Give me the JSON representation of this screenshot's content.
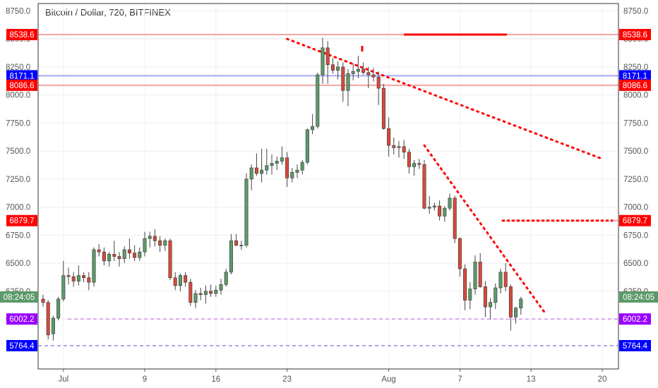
{
  "header": {
    "title": "Bitcoin / Dollar, 720, BITFINEX"
  },
  "colors": {
    "up": "#5b9a68",
    "down": "#d64a3b",
    "red_tag": "#ff0000",
    "blue_tag": "#0000ff",
    "purple_tag": "#9900ff",
    "green_tag": "#5b9a68"
  },
  "chart_data": {
    "type": "candlestick",
    "ylim": [
      5640,
      8830
    ],
    "y_ticks": [
      {
        "value": 6000,
        "label": "6000.0"
      },
      {
        "value": 6250,
        "label": "6250.0"
      },
      {
        "value": 6500,
        "label": "6500.0"
      },
      {
        "value": 6750,
        "label": "6750.0"
      },
      {
        "value": 7000,
        "label": "7000.0"
      },
      {
        "value": 7250,
        "label": "7250.0"
      },
      {
        "value": 7500,
        "label": "7500.0"
      },
      {
        "value": 7750,
        "label": "7750.0"
      },
      {
        "value": 8000,
        "label": "8000.0"
      },
      {
        "value": 8250,
        "label": "8250.0"
      },
      {
        "value": 8500,
        "label": "8500.0"
      },
      {
        "value": 8750,
        "label": "8750.0"
      }
    ],
    "x_ticks": [
      {
        "index": 4,
        "label": "Jul"
      },
      {
        "index": 20,
        "label": "9"
      },
      {
        "index": 34,
        "label": "16"
      },
      {
        "index": 48,
        "label": "23"
      },
      {
        "index": 68,
        "label": "Aug"
      },
      {
        "index": 82,
        "label": "7"
      },
      {
        "index": 96,
        "label": "13"
      },
      {
        "index": 110,
        "label": "20"
      }
    ],
    "candles": [
      [
        6180,
        6220,
        6110,
        6150
      ],
      [
        6150,
        6170,
        5820,
        5860
      ],
      [
        5870,
        6030,
        5810,
        6010
      ],
      [
        6010,
        6200,
        5990,
        6180
      ],
      [
        6180,
        6520,
        6160,
        6390
      ],
      [
        6390,
        6460,
        6310,
        6380
      ],
      [
        6380,
        6420,
        6290,
        6340
      ],
      [
        6340,
        6480,
        6300,
        6390
      ],
      [
        6390,
        6420,
        6330,
        6370
      ],
      [
        6370,
        6420,
        6260,
        6330
      ],
      [
        6330,
        6640,
        6290,
        6620
      ],
      [
        6620,
        6670,
        6560,
        6600
      ],
      [
        6600,
        6640,
        6480,
        6520
      ],
      [
        6520,
        6600,
        6470,
        6580
      ],
      [
        6580,
        6700,
        6520,
        6560
      ],
      [
        6560,
        6600,
        6470,
        6540
      ],
      [
        6540,
        6650,
        6500,
        6620
      ],
      [
        6620,
        6720,
        6540,
        6590
      ],
      [
        6590,
        6660,
        6520,
        6550
      ],
      [
        6550,
        6640,
        6520,
        6600
      ],
      [
        6600,
        6780,
        6560,
        6720
      ],
      [
        6720,
        6780,
        6640,
        6740
      ],
      [
        6740,
        6800,
        6650,
        6700
      ],
      [
        6700,
        6740,
        6600,
        6660
      ],
      [
        6660,
        6720,
        6610,
        6700
      ],
      [
        6700,
        6720,
        6350,
        6370
      ],
      [
        6370,
        6420,
        6260,
        6300
      ],
      [
        6300,
        6410,
        6250,
        6390
      ],
      [
        6390,
        6420,
        6290,
        6330
      ],
      [
        6330,
        6360,
        6120,
        6150
      ],
      [
        6150,
        6260,
        6100,
        6230
      ],
      [
        6230,
        6280,
        6170,
        6220
      ],
      [
        6220,
        6300,
        6140,
        6250
      ],
      [
        6250,
        6310,
        6200,
        6230
      ],
      [
        6230,
        6300,
        6200,
        6260
      ],
      [
        6260,
        6360,
        6220,
        6310
      ],
      [
        6310,
        6450,
        6290,
        6420
      ],
      [
        6420,
        6760,
        6400,
        6700
      ],
      [
        6700,
        6760,
        6650,
        6660
      ],
      [
        6660,
        6700,
        6620,
        6660
      ],
      [
        6660,
        7300,
        6640,
        7250
      ],
      [
        7250,
        7380,
        7150,
        7350
      ],
      [
        7350,
        7480,
        7280,
        7300
      ],
      [
        7300,
        7520,
        7220,
        7330
      ],
      [
        7330,
        7520,
        7290,
        7370
      ],
      [
        7370,
        7470,
        7290,
        7390
      ],
      [
        7390,
        7450,
        7330,
        7410
      ],
      [
        7410,
        7540,
        7380,
        7440
      ],
      [
        7440,
        7490,
        7180,
        7260
      ],
      [
        7260,
        7350,
        7220,
        7310
      ],
      [
        7310,
        7380,
        7260,
        7330
      ],
      [
        7330,
        7420,
        7290,
        7400
      ],
      [
        7400,
        7700,
        7380,
        7690
      ],
      [
        7690,
        7830,
        7650,
        7720
      ],
      [
        7720,
        8200,
        7700,
        8180
      ],
      [
        8180,
        8510,
        8100,
        8420
      ],
      [
        8420,
        8480,
        8100,
        8270
      ],
      [
        8270,
        8330,
        8190,
        8220
      ],
      [
        8220,
        8300,
        8140,
        8250
      ],
      [
        8250,
        8290,
        7940,
        8040
      ],
      [
        8040,
        8230,
        7900,
        8190
      ],
      [
        8190,
        8280,
        8130,
        8210
      ],
      [
        8210,
        8350,
        8150,
        8230
      ],
      [
        8230,
        8290,
        8180,
        8200
      ],
      [
        8200,
        8250,
        8060,
        8180
      ],
      [
        8180,
        8240,
        8120,
        8160
      ],
      [
        8160,
        8210,
        7910,
        8060
      ],
      [
        8060,
        8100,
        7690,
        7700
      ],
      [
        7700,
        7800,
        7450,
        7550
      ],
      [
        7550,
        7620,
        7470,
        7530
      ],
      [
        7530,
        7590,
        7440,
        7540
      ],
      [
        7540,
        7600,
        7430,
        7490
      ],
      [
        7490,
        7520,
        7300,
        7360
      ],
      [
        7360,
        7420,
        7280,
        7390
      ],
      [
        7390,
        7430,
        7340,
        7380
      ],
      [
        7380,
        7420,
        6980,
        6990
      ],
      [
        6990,
        7100,
        6940,
        7000
      ],
      [
        7000,
        7040,
        6970,
        7010
      ],
      [
        7010,
        7060,
        6880,
        6920
      ],
      [
        6920,
        7010,
        6870,
        6990
      ],
      [
        6990,
        7120,
        6970,
        7080
      ],
      [
        7080,
        7100,
        6680,
        6720
      ],
      [
        6720,
        6730,
        6380,
        6450
      ],
      [
        6450,
        6490,
        6080,
        6170
      ],
      [
        6170,
        6330,
        6090,
        6270
      ],
      [
        6270,
        6570,
        6220,
        6510
      ],
      [
        6510,
        6590,
        6280,
        6290
      ],
      [
        6290,
        6340,
        6020,
        6110
      ],
      [
        6110,
        6190,
        6000,
        6150
      ],
      [
        6150,
        6320,
        6090,
        6280
      ],
      [
        6280,
        6450,
        6230,
        6420
      ],
      [
        6420,
        6500,
        6250,
        6290
      ],
      [
        6290,
        6310,
        5900,
        6020
      ],
      [
        6020,
        6110,
        5960,
        6100
      ],
      [
        6100,
        6200,
        6040,
        6180
      ]
    ],
    "levels": [
      {
        "value": 8538.6,
        "label": "8538.6",
        "color": "#ff0000",
        "left_tag": "8538.6",
        "right_tag": "8538.6"
      },
      {
        "value": 8171.1,
        "label": "8171.1",
        "color": "#0000ff",
        "left_tag": "8171.1",
        "right_tag": "8171.1"
      },
      {
        "value": 8086.6,
        "label": "8086.6",
        "color": "#ff0000",
        "left_tag": "8086.6",
        "right_tag": "8086.6"
      },
      {
        "value": 6879.7,
        "label": "6879.7",
        "color": "#ff0000",
        "left_tag": "6879.7",
        "right_tag": "6879.7"
      },
      {
        "value": 6002.2,
        "label": "6002.2",
        "color": "#9900ff",
        "left_tag": "6002.2",
        "right_tag": "6002.2"
      },
      {
        "value": 5764.4,
        "label": "5764.4",
        "color": "#0000ff",
        "left_tag": "5764.4",
        "right_tag": "5764.4"
      }
    ],
    "countdown": "08:24:05",
    "trendlines": [
      {
        "from": [
          48,
          8500
        ],
        "to": [
          110,
          7430
        ]
      },
      {
        "from": [
          75,
          7550
        ],
        "to": [
          99,
          6040
        ]
      }
    ]
  }
}
